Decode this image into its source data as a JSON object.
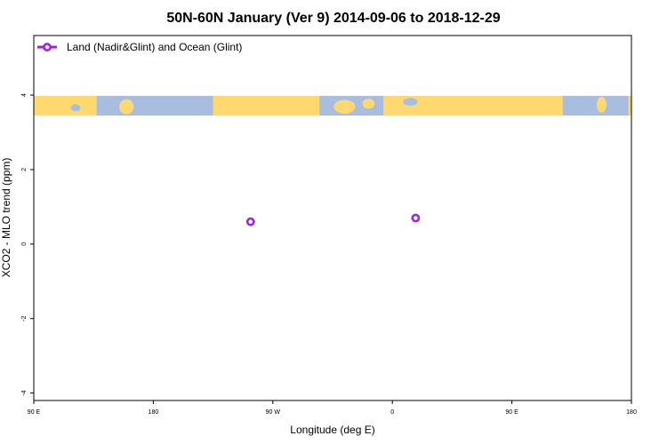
{
  "chart_data": {
    "type": "scatter",
    "title": "50N-60N January (Ver 9)   2014-09-06 to 2018-12-29",
    "xlabel": "Longitude (deg E)",
    "ylabel": "XCO2 - MLO trend (ppm)",
    "xlim": [
      90,
      450
    ],
    "ylim": [
      -4.2,
      5.6
    ],
    "x_ticks": [
      {
        "value": 90,
        "label": "90 E"
      },
      {
        "value": 162,
        "label": "180"
      },
      {
        "value": 234,
        "label": "90 W"
      },
      {
        "value": 306,
        "label": "0"
      },
      {
        "value": 378,
        "label": "90 E"
      },
      {
        "value": 450,
        "label": "180"
      }
    ],
    "y_ticks": [
      {
        "value": 4,
        "label": "4"
      },
      {
        "value": 2,
        "label": "2"
      },
      {
        "value": 0,
        "label": "0"
      },
      {
        "value": -2,
        "label": "-2"
      },
      {
        "value": -4,
        "label": "-4"
      }
    ],
    "series": [
      {
        "name": "Land (Nadir&Glint) and Ocean (Glint)",
        "color": "#a020f0",
        "marker": "open-circle",
        "x": [
          220.6,
          320.0
        ],
        "y": [
          0.6,
          0.7
        ]
      }
    ],
    "map_band": {
      "y_range": [
        3.45,
        3.98
      ],
      "land_color": "#ffd870",
      "ocean_color": "#a8bde0"
    },
    "legend": {
      "position": "top-left"
    },
    "grid": false
  }
}
